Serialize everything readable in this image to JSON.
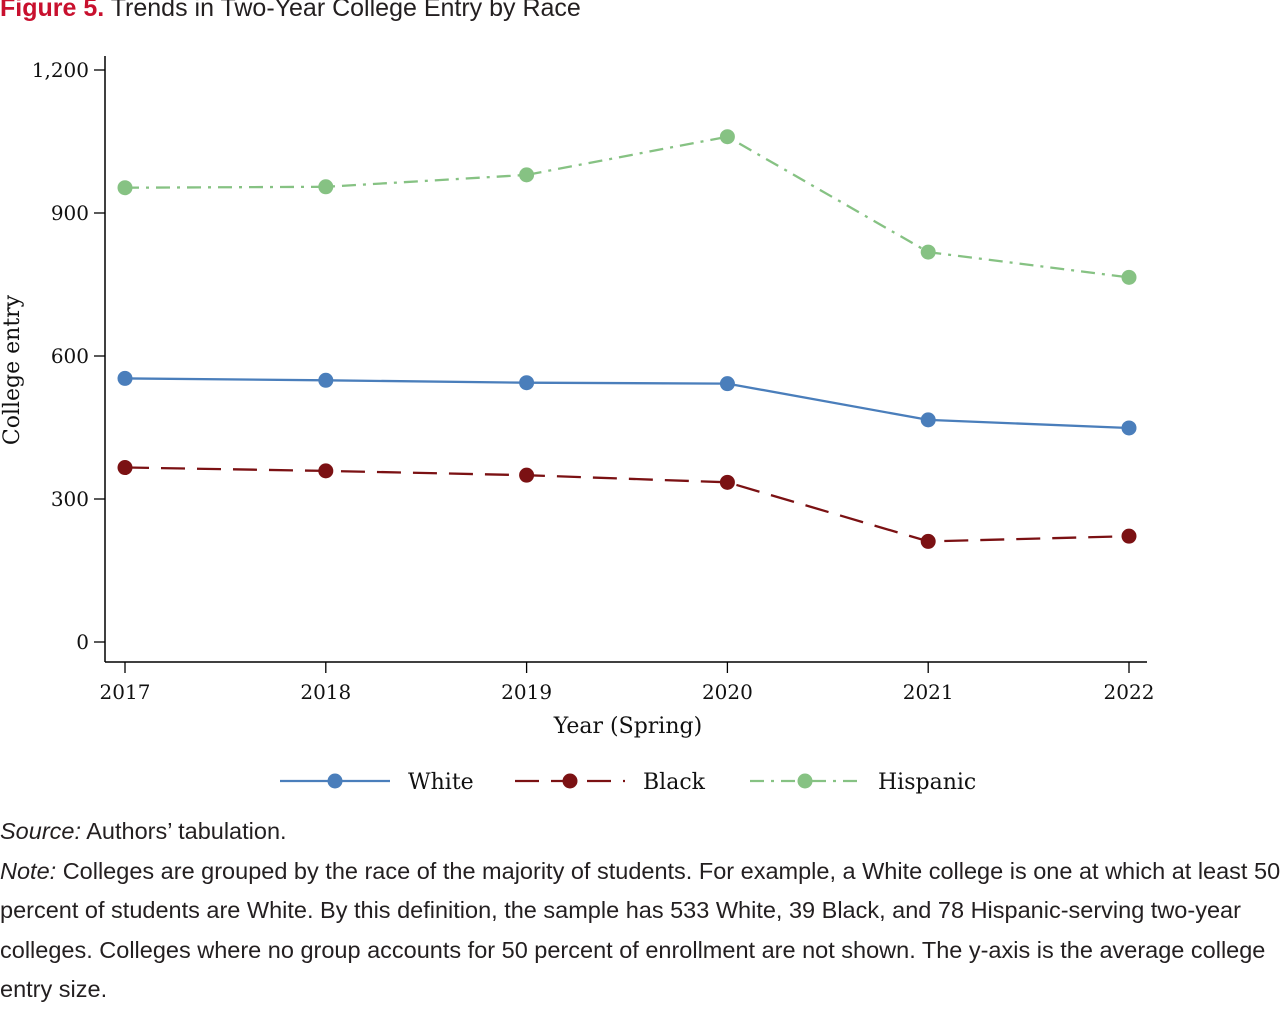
{
  "figure": {
    "label": "Figure 5.",
    "title": "Trends in Two-Year College Entry by Race"
  },
  "chart_data": {
    "type": "line",
    "title": "Trends in Two-Year College Entry by Race",
    "xlabel": "Year (Spring)",
    "ylabel": "College entry",
    "x": [
      2017,
      2018,
      2019,
      2020,
      2021,
      2022
    ],
    "ylim": [
      0,
      1200
    ],
    "yticks": [
      0,
      300,
      600,
      900,
      1200
    ],
    "ytick_labels": [
      "0",
      "300",
      "600",
      "900",
      "1,200"
    ],
    "grid": false,
    "legend_position": "bottom",
    "series": [
      {
        "name": "White",
        "color": "#4a7ebb",
        "dash": "solid",
        "values": [
          553,
          549,
          544,
          542,
          466,
          449
        ]
      },
      {
        "name": "Black",
        "color": "#7b1113",
        "dash": "dash",
        "values": [
          366,
          359,
          350,
          335,
          211,
          222
        ]
      },
      {
        "name": "Hispanic",
        "color": "#86c283",
        "dash": "dashdot",
        "values": [
          953,
          955,
          980,
          1060,
          818,
          765
        ]
      }
    ]
  },
  "source": {
    "label": "Source:",
    "text": " Authors’ tabulation."
  },
  "note": {
    "label": "Note:",
    "text": " Colleges are grouped by the race of the majority of students. For example, a White college is one at which at least 50 percent of students are White. By this definition, the sample has 533 White, 39 Black, and 78 Hispanic-serving two-year colleges. Colleges where no group accounts for 50 percent of enrollment are not shown. The y-axis is the average college entry size."
  }
}
